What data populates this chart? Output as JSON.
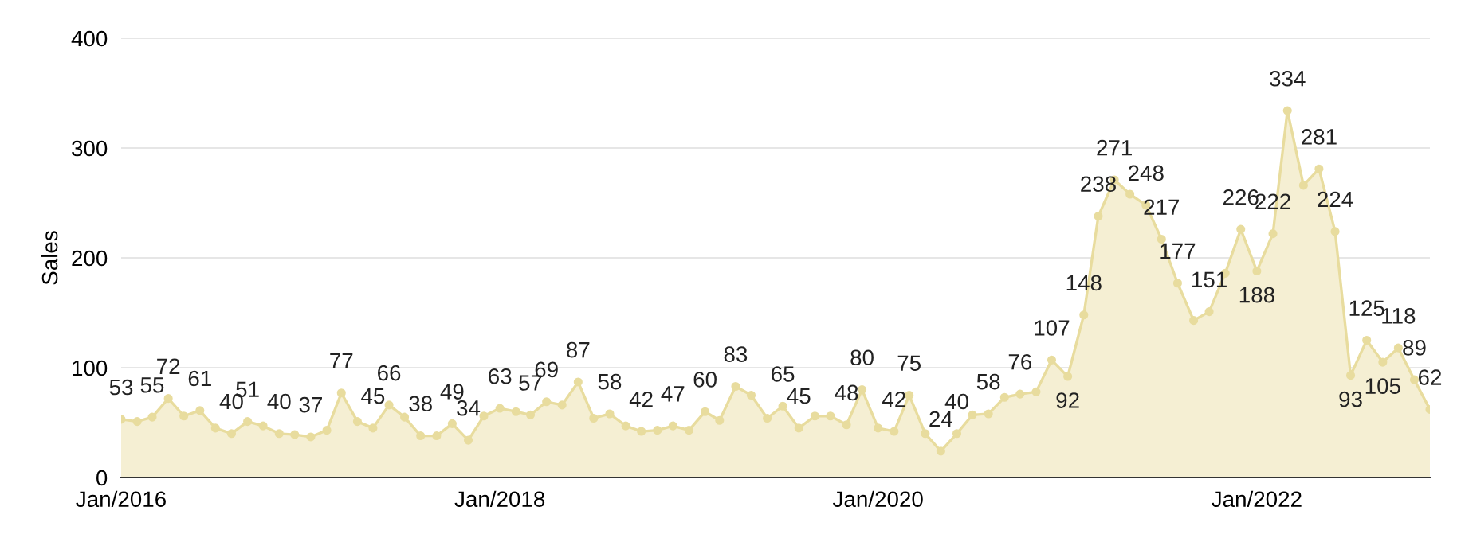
{
  "chart_data": {
    "type": "area",
    "ylabel": "Sales",
    "x": [
      "2016-01",
      "2016-02",
      "2016-03",
      "2016-04",
      "2016-05",
      "2016-06",
      "2016-07",
      "2016-08",
      "2016-09",
      "2016-10",
      "2016-11",
      "2016-12",
      "2017-01",
      "2017-02",
      "2017-03",
      "2017-04",
      "2017-05",
      "2017-06",
      "2017-07",
      "2017-08",
      "2017-09",
      "2017-10",
      "2017-11",
      "2017-12",
      "2018-01",
      "2018-02",
      "2018-03",
      "2018-04",
      "2018-05",
      "2018-06",
      "2018-07",
      "2018-08",
      "2018-09",
      "2018-10",
      "2018-11",
      "2018-12",
      "2019-01",
      "2019-02",
      "2019-03",
      "2019-04",
      "2019-05",
      "2019-06",
      "2019-07",
      "2019-08",
      "2019-09",
      "2019-10",
      "2019-11",
      "2019-12",
      "2020-01",
      "2020-02",
      "2020-03",
      "2020-04",
      "2020-05",
      "2020-06",
      "2020-07",
      "2020-08",
      "2020-09",
      "2020-10",
      "2020-11",
      "2020-12",
      "2021-01",
      "2021-02",
      "2021-03",
      "2021-04",
      "2021-05",
      "2021-06",
      "2021-07",
      "2021-08",
      "2021-09",
      "2021-10",
      "2021-11",
      "2021-12",
      "2022-01",
      "2022-02",
      "2022-03",
      "2022-04",
      "2022-05",
      "2022-06",
      "2022-07",
      "2022-08",
      "2022-09",
      "2022-10",
      "2022-11",
      "2022-12"
    ],
    "series": [
      {
        "color": "#e8dc9e",
        "values": [
          53,
          51,
          55,
          72,
          56,
          61,
          45,
          40,
          51,
          47,
          40,
          39,
          37,
          43,
          77,
          51,
          45,
          66,
          55,
          38,
          38,
          49,
          34,
          56,
          63,
          60,
          57,
          69,
          66,
          87,
          54,
          58,
          47,
          42,
          43,
          47,
          43,
          60,
          52,
          83,
          75,
          54,
          65,
          45,
          56,
          56,
          48,
          80,
          45,
          42,
          75,
          40,
          24,
          40,
          57,
          58,
          73,
          76,
          78,
          107,
          92,
          148,
          238,
          271,
          258,
          248,
          217,
          177,
          143,
          151,
          186,
          226,
          188,
          222,
          334,
          266,
          281,
          224,
          93,
          125,
          105,
          118,
          89,
          62
        ],
        "value_labels": [
          "53",
          null,
          "55",
          "72",
          null,
          "61",
          null,
          "40",
          "51",
          null,
          "40",
          null,
          "37",
          null,
          "77",
          null,
          "45",
          "66",
          null,
          "38",
          null,
          "49",
          "34",
          null,
          "63",
          null,
          "57",
          "69",
          null,
          "87",
          null,
          "58",
          null,
          "42",
          null,
          "47",
          null,
          "60",
          null,
          "83",
          null,
          null,
          "65",
          "45",
          null,
          null,
          "48",
          "80",
          null,
          "42",
          "75",
          null,
          "24",
          "40",
          null,
          "58",
          null,
          "76",
          null,
          "107",
          "92",
          "148",
          "238",
          "271",
          null,
          "248",
          "217",
          "177",
          null,
          "151",
          null,
          "226",
          "188",
          "222",
          "334",
          null,
          "281",
          "224",
          "93",
          "125",
          "105",
          "118",
          "89",
          "62"
        ]
      }
    ],
    "xlim": [
      "2016-01",
      "2022-12"
    ],
    "xticks": [
      {
        "value": "2016-01",
        "label": "Jan/2016"
      },
      {
        "value": "2018-01",
        "label": "Jan/2018"
      },
      {
        "value": "2020-01",
        "label": "Jan/2020"
      },
      {
        "value": "2022-01",
        "label": "Jan/2022"
      }
    ],
    "ylim": [
      0,
      400
    ],
    "yticks": [
      0,
      100,
      200,
      300,
      400
    ],
    "grid": "y",
    "legend": false,
    "marker": "circle",
    "line_style": "solid"
  }
}
